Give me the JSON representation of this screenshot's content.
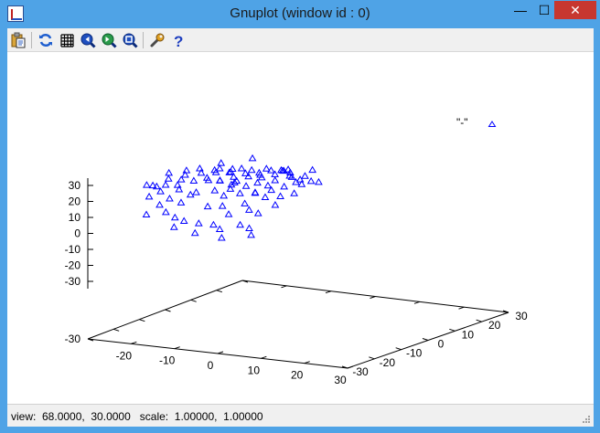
{
  "window": {
    "title": "Gnuplot (window id : 0)",
    "minimize_glyph": "—",
    "maximize_glyph": "☐",
    "close_glyph": "✕"
  },
  "toolbar": {
    "items": [
      {
        "name": "copy-to-clipboard-button",
        "icon": "clipboard-icon"
      },
      {
        "name": "replot-button",
        "icon": "refresh-icon"
      },
      {
        "name": "toggle-grid-button",
        "icon": "grid-icon"
      },
      {
        "name": "zoom-previous-button",
        "icon": "zoom-back-icon"
      },
      {
        "name": "zoom-next-button",
        "icon": "zoom-forward-icon"
      },
      {
        "name": "unzoom-button",
        "icon": "zoom-reset-icon"
      },
      {
        "name": "options-button",
        "icon": "wrench-icon"
      },
      {
        "name": "help-button",
        "icon": "help-icon"
      }
    ]
  },
  "status": {
    "text": "view:  68.0000,  30.0000   scale:  1.00000,  1.00000"
  },
  "chart_data": {
    "type": "scatter",
    "title": "",
    "legend": {
      "label": "\"-\"",
      "placement": "top-right",
      "marker": "triangle"
    },
    "marker_color": "#0000ff",
    "view": {
      "rot_x": 68,
      "rot_z": 30,
      "scale": 1,
      "scale_z": 1
    },
    "x_axis": {
      "range": [
        -30,
        30
      ],
      "ticks": [
        "-20",
        "-10",
        "0",
        "10",
        "20",
        "30"
      ]
    },
    "y_axis": {
      "range": [
        -30,
        30
      ],
      "ticks": [
        "-30",
        "-20",
        "-10",
        "0",
        "10",
        "20",
        "30"
      ]
    },
    "z_axis": {
      "range": [
        -30,
        30
      ],
      "ticks": [
        "-30",
        "-20",
        "-10",
        "0",
        "10",
        "20",
        "30"
      ]
    },
    "xlabel": "",
    "ylabel": "",
    "zlabel": "",
    "points": [
      [
        -25,
        -10,
        3
      ],
      [
        -22,
        -8,
        1
      ],
      [
        -18,
        -12,
        2
      ],
      [
        -20,
        -3,
        5
      ],
      [
        -15,
        -5,
        3
      ],
      [
        -12,
        -9,
        4
      ],
      [
        -16,
        2,
        6
      ],
      [
        -10,
        -2,
        7
      ],
      [
        -8,
        4,
        5
      ],
      [
        -6,
        -7,
        2
      ],
      [
        -5,
        0,
        8
      ],
      [
        -2,
        3,
        6
      ],
      [
        0,
        -4,
        4
      ],
      [
        2,
        6,
        9
      ],
      [
        4,
        1,
        7
      ],
      [
        5,
        -6,
        3
      ],
      [
        7,
        8,
        10
      ],
      [
        9,
        3,
        6
      ],
      [
        10,
        -3,
        5
      ],
      [
        12,
        6,
        8
      ],
      [
        14,
        1,
        4
      ],
      [
        15,
        -8,
        2
      ],
      [
        17,
        10,
        9
      ],
      [
        19,
        4,
        6
      ],
      [
        20,
        -2,
        5
      ],
      [
        22,
        8,
        7
      ],
      [
        24,
        2,
        4
      ],
      [
        26,
        -5,
        3
      ],
      [
        27,
        12,
        8
      ],
      [
        28,
        5,
        6
      ],
      [
        -24,
        4,
        2
      ],
      [
        -19,
        8,
        3
      ],
      [
        -14,
        10,
        1
      ],
      [
        -9,
        12,
        2
      ],
      [
        -4,
        14,
        3
      ],
      [
        1,
        16,
        2
      ],
      [
        6,
        18,
        1
      ],
      [
        11,
        20,
        2
      ],
      [
        16,
        22,
        1
      ],
      [
        -21,
        -15,
        -2
      ],
      [
        -13,
        -14,
        -1
      ],
      [
        -7,
        -16,
        0
      ],
      [
        3,
        -14,
        -1
      ],
      [
        8,
        -12,
        0
      ],
      [
        13,
        -16,
        -2
      ],
      [
        18,
        -10,
        -1
      ],
      [
        23,
        -12,
        0
      ],
      [
        -17,
        14,
        0
      ],
      [
        -3,
        20,
        1
      ],
      [
        7,
        24,
        0
      ],
      [
        13,
        26,
        2
      ],
      [
        21,
        18,
        1
      ],
      [
        25,
        22,
        0
      ],
      [
        -11,
        18,
        -1
      ],
      [
        -1,
        8,
        10
      ],
      [
        6,
        12,
        12
      ],
      [
        11,
        14,
        14
      ],
      [
        16,
        16,
        13
      ],
      [
        21,
        14,
        15
      ],
      [
        26,
        16,
        12
      ],
      [
        -6,
        6,
        12
      ],
      [
        1,
        -2,
        13
      ],
      [
        8,
        -2,
        16
      ],
      [
        15,
        4,
        17
      ],
      [
        19,
        12,
        18
      ],
      [
        24,
        10,
        16
      ],
      [
        -26,
        -4,
        -4
      ],
      [
        -23,
        0,
        -6
      ],
      [
        -20,
        6,
        -5
      ],
      [
        -16,
        -16,
        -7
      ],
      [
        -11,
        -20,
        -8
      ],
      [
        -6,
        -22,
        -9
      ],
      [
        -1,
        -24,
        -8
      ],
      [
        4,
        -22,
        -10
      ],
      [
        9,
        -20,
        -11
      ],
      [
        14,
        -24,
        -9
      ],
      [
        19,
        -18,
        -8
      ],
      [
        24,
        -20,
        -7
      ],
      [
        -8,
        22,
        -4
      ],
      [
        2,
        24,
        -5
      ],
      [
        10,
        28,
        -3
      ],
      [
        18,
        26,
        -6
      ],
      [
        27,
        24,
        -2
      ],
      [
        -14,
        24,
        -3
      ],
      [
        -18,
        -22,
        -12
      ],
      [
        -4,
        -26,
        -14
      ],
      [
        6,
        -28,
        -13
      ],
      [
        16,
        -26,
        -15
      ],
      [
        26,
        -22,
        -11
      ],
      [
        22,
        28,
        4
      ],
      [
        -2,
        26,
        6
      ],
      [
        14,
        10,
        2
      ],
      [
        3,
        2,
        1
      ],
      [
        -9,
        -6,
        -3
      ],
      [
        17,
        -4,
        10
      ],
      [
        0,
        10,
        -2
      ]
    ]
  }
}
